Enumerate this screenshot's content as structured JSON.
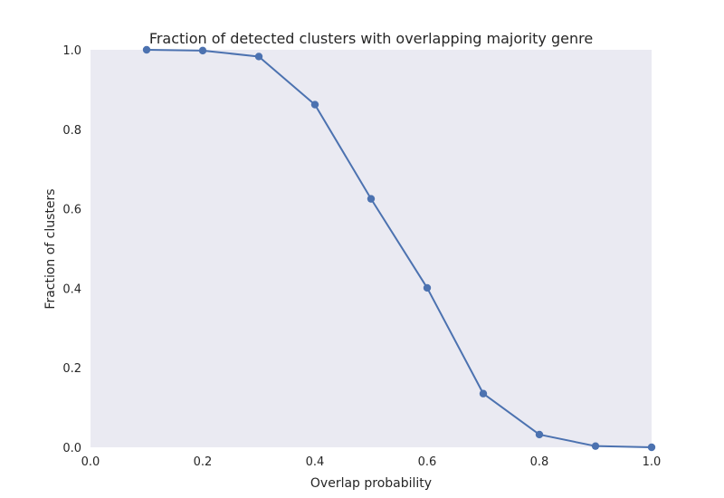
{
  "chart_data": {
    "type": "line",
    "title": "Fraction of detected clusters with overlapping majority genre",
    "xlabel": "Overlap probability",
    "ylabel": "Fraction of clusters",
    "xlim": [
      0.0,
      1.0
    ],
    "ylim": [
      0.0,
      1.0
    ],
    "xticks": [
      "0.0",
      "0.2",
      "0.4",
      "0.6",
      "0.8",
      "1.0"
    ],
    "yticks": [
      "0.0",
      "0.2",
      "0.4",
      "0.6",
      "0.8",
      "1.0"
    ],
    "grid": false,
    "legend": "none",
    "colors": {
      "background": "#eaeaf2",
      "line": "#4c72b0",
      "text": "#262626"
    },
    "series": [
      {
        "x": [
          0.1,
          0.2,
          0.3,
          0.4,
          0.5,
          0.6,
          0.7,
          0.8,
          0.9,
          1.0
        ],
        "y": [
          1.0,
          0.998,
          0.983,
          0.862,
          0.625,
          0.401,
          0.135,
          0.032,
          0.003,
          0.0
        ]
      }
    ]
  }
}
